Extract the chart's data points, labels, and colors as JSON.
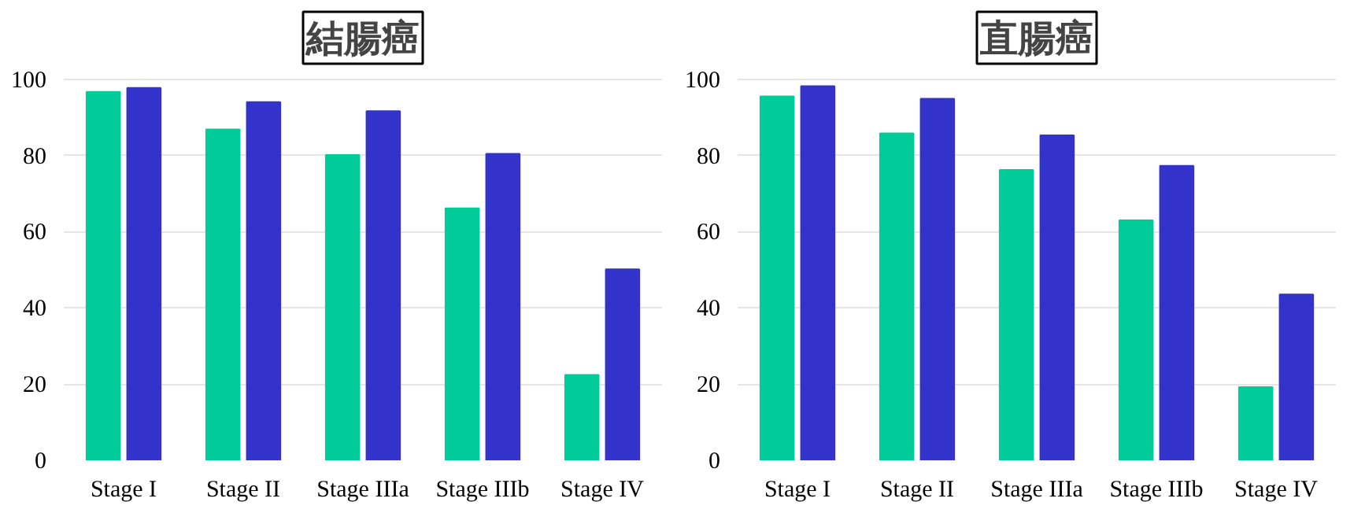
{
  "chart_data": [
    {
      "type": "bar",
      "title": "結腸癌",
      "categories": [
        "Stage I",
        "Stage II",
        "Stage IIIa",
        "Stage IIIb",
        "Stage IV"
      ],
      "series": [
        {
          "color": "#00cc99",
          "values": [
            96.7,
            86.8,
            80.1,
            66.1,
            22.4
          ]
        },
        {
          "color": "#3333cc",
          "values": [
            97.7,
            94.0,
            91.6,
            80.4,
            50.1
          ]
        }
      ],
      "ylim": [
        0,
        100
      ],
      "yticks": [
        0,
        20,
        40,
        60,
        80,
        100
      ],
      "grid": "y"
    },
    {
      "type": "bar",
      "title": "直腸癌",
      "categories": [
        "Stage I",
        "Stage II",
        "Stage IIIa",
        "Stage IIIb",
        "Stage IV"
      ],
      "series": [
        {
          "color": "#00cc99",
          "values": [
            95.5,
            85.8,
            76.2,
            63.0,
            19.2
          ]
        },
        {
          "color": "#3333cc",
          "values": [
            98.2,
            94.9,
            85.3,
            77.3,
            43.5
          ]
        }
      ],
      "ylim": [
        0,
        100
      ],
      "yticks": [
        0,
        20,
        40,
        60,
        80,
        100
      ],
      "grid": "y"
    }
  ]
}
